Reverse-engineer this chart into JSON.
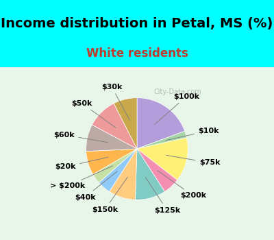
{
  "title": "Income distribution in Petal, MS (%)",
  "subtitle": "White residents",
  "background_top": "#00FFFF",
  "background_chart": "#e8f5e9",
  "watermark": "City-Data.com",
  "labels": [
    "$100k",
    "$10k",
    "$75k",
    "$200k",
    "$125k",
    "$150k",
    "$40k",
    "> $200k",
    "$20k",
    "$60k",
    "$50k",
    "$30k"
  ],
  "values": [
    18,
    2,
    13,
    5,
    9,
    8,
    4,
    3,
    7,
    8,
    9,
    7
  ],
  "colors": [
    "#b39ddb",
    "#a5d6a7",
    "#fff176",
    "#f48fb1",
    "#80cbc4",
    "#ffcc80",
    "#90caf9",
    "#c5e1a5",
    "#ffb74d",
    "#bcaaa4",
    "#ef9a9a",
    "#c8a84b"
  ],
  "title_fontsize": 14,
  "subtitle_fontsize": 12,
  "label_fontsize": 8
}
